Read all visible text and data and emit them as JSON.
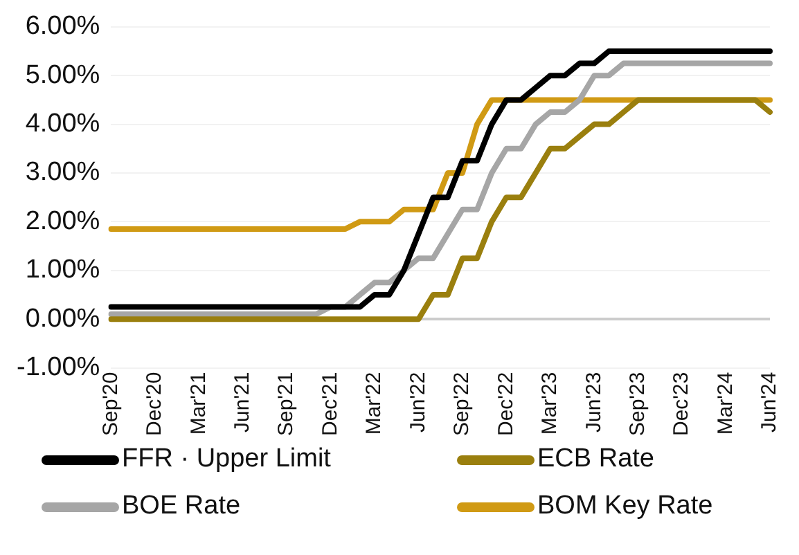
{
  "chart_data": {
    "type": "line",
    "categories": [
      "Sep'20",
      null,
      null,
      "Dec'20",
      null,
      null,
      "Mar'21",
      null,
      null,
      "Jun'21",
      null,
      null,
      "Sep'21",
      null,
      null,
      "Dec'21",
      null,
      null,
      "Mar'22",
      null,
      null,
      "Jun'22",
      null,
      null,
      "Sep'22",
      null,
      null,
      "Dec'22",
      null,
      null,
      "Mar'23",
      null,
      null,
      "Jun'23",
      null,
      null,
      "Sep'23",
      null,
      null,
      "Dec'23",
      null,
      null,
      "Mar'24",
      null,
      null,
      "Jun'24"
    ],
    "series": [
      {
        "name": "FFR · Upper Limit",
        "color": "#000000",
        "values": [
          0.25,
          0.25,
          0.25,
          0.25,
          0.25,
          0.25,
          0.25,
          0.25,
          0.25,
          0.25,
          0.25,
          0.25,
          0.25,
          0.25,
          0.25,
          0.25,
          0.25,
          0.25,
          0.5,
          0.5,
          1.0,
          1.75,
          2.5,
          2.5,
          3.25,
          3.25,
          4.0,
          4.5,
          4.5,
          4.75,
          5.0,
          5.0,
          5.25,
          5.25,
          5.5,
          5.5,
          5.5,
          5.5,
          5.5,
          5.5,
          5.5,
          5.5,
          5.5,
          5.5,
          5.5,
          5.5
        ]
      },
      {
        "name": "ECB Rate",
        "color": "#9a7f0e",
        "values": [
          0,
          0,
          0,
          0,
          0,
          0,
          0,
          0,
          0,
          0,
          0,
          0,
          0,
          0,
          0,
          0,
          0,
          0,
          0,
          0,
          0,
          0,
          0.5,
          0.5,
          1.25,
          1.25,
          2.0,
          2.5,
          2.5,
          3.0,
          3.5,
          3.5,
          3.75,
          4.0,
          4.0,
          4.25,
          4.5,
          4.5,
          4.5,
          4.5,
          4.5,
          4.5,
          4.5,
          4.5,
          4.5,
          4.25
        ]
      },
      {
        "name": "BOE Rate",
        "color": "#a6a6a6",
        "values": [
          0.1,
          0.1,
          0.1,
          0.1,
          0.1,
          0.1,
          0.1,
          0.1,
          0.1,
          0.1,
          0.1,
          0.1,
          0.1,
          0.1,
          0.1,
          0.25,
          0.25,
          0.5,
          0.75,
          0.75,
          1.0,
          1.25,
          1.25,
          1.75,
          2.25,
          2.25,
          3.0,
          3.5,
          3.5,
          4.0,
          4.25,
          4.25,
          4.5,
          5.0,
          5.0,
          5.25,
          5.25,
          5.25,
          5.25,
          5.25,
          5.25,
          5.25,
          5.25,
          5.25,
          5.25,
          5.25
        ]
      },
      {
        "name": "BOM Key Rate",
        "color": "#d09a14",
        "values": [
          1.85,
          1.85,
          1.85,
          1.85,
          1.85,
          1.85,
          1.85,
          1.85,
          1.85,
          1.85,
          1.85,
          1.85,
          1.85,
          1.85,
          1.85,
          1.85,
          1.85,
          2.0,
          2.0,
          2.0,
          2.25,
          2.25,
          2.25,
          3.0,
          3.0,
          4.0,
          4.5,
          4.5,
          4.5,
          4.5,
          4.5,
          4.5,
          4.5,
          4.5,
          4.5,
          4.5,
          4.5,
          4.5,
          4.5,
          4.5,
          4.5,
          4.5,
          4.5,
          4.5,
          4.5,
          4.5
        ]
      }
    ],
    "ylim": [
      -1,
      6
    ],
    "yticks": [
      {
        "value": -1,
        "label": "-1.00%"
      },
      {
        "value": 0,
        "label": "0.00%"
      },
      {
        "value": 1,
        "label": "1.00%"
      },
      {
        "value": 2,
        "label": "2.00%"
      },
      {
        "value": 3,
        "label": "3.00%"
      },
      {
        "value": 4,
        "label": "4.00%"
      },
      {
        "value": 5,
        "label": "5.00%"
      },
      {
        "value": 6,
        "label": "6.00%"
      }
    ],
    "grid": "y",
    "legend": "bottom",
    "line_style": "solid"
  }
}
